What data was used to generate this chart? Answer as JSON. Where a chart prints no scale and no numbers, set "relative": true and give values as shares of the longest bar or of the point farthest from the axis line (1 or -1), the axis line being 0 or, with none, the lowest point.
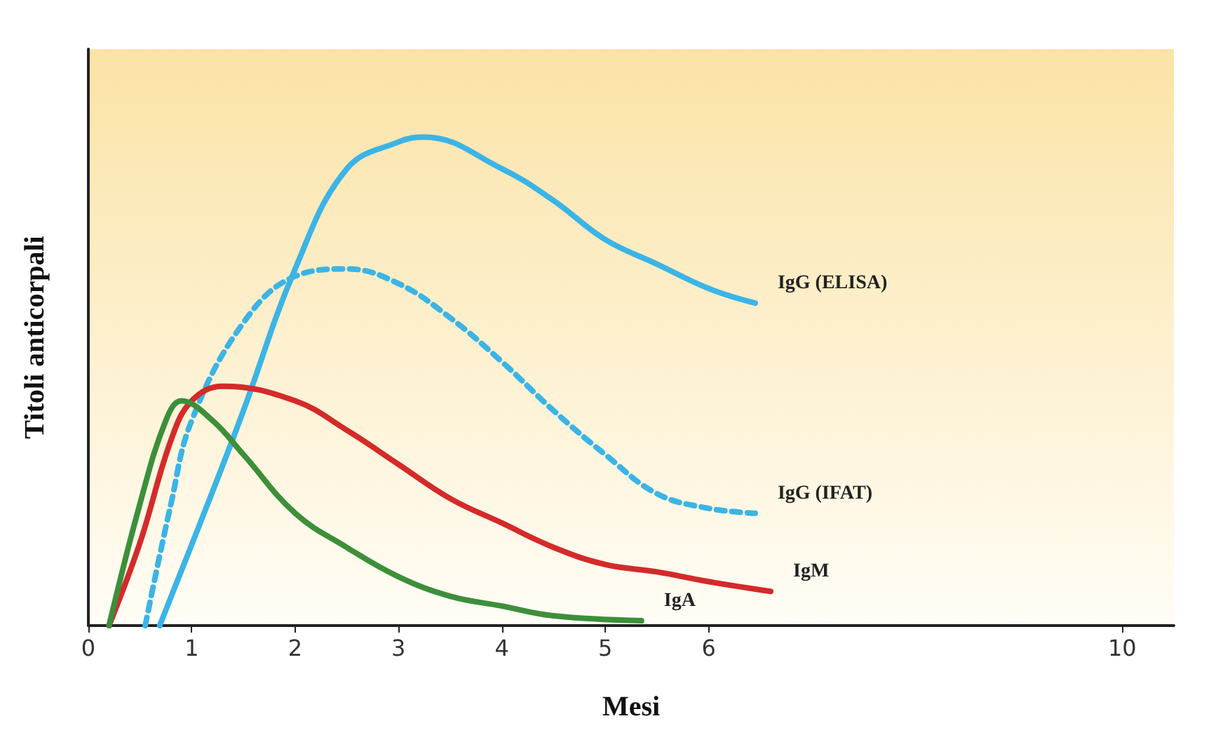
{
  "chart_data": {
    "type": "line",
    "relative": true,
    "xlabel": "Mesi",
    "ylabel": "Titoli anticorpali",
    "xlim": [
      0,
      10.5
    ],
    "xticks": [
      0,
      1,
      2,
      3,
      4,
      5,
      6,
      10
    ],
    "grid": false,
    "legend": false,
    "marker": "none",
    "series": [
      {
        "name": "IgG (ELISA)",
        "color": "#3bb4e6",
        "line_style": "solid",
        "x": [
          0.69,
          1.23,
          1.5,
          2,
          2.5,
          3,
          3.25,
          4,
          4.5,
          5,
          5.5,
          6,
          6.45
        ],
        "values": [
          0,
          0.29,
          0.44,
          0.73,
          0.935,
          0.99,
          1,
          0.935,
          0.87,
          0.79,
          0.74,
          0.69,
          0.66
        ]
      },
      {
        "name": "IgG (IFAT)",
        "color": "#3bb4e6",
        "line_style": "dashed",
        "x": [
          0.55,
          0.8,
          1,
          1.5,
          2,
          2.5,
          3,
          3.5,
          4,
          4.5,
          5,
          5.5,
          6,
          6.45
        ],
        "values": [
          0,
          0.25,
          0.42,
          0.62,
          0.715,
          0.73,
          0.7,
          0.63,
          0.54,
          0.44,
          0.35,
          0.27,
          0.24,
          0.23
        ]
      },
      {
        "name": "IgM",
        "color": "#d42a2a",
        "line_style": "solid",
        "x": [
          0.2,
          0.5,
          0.8,
          1,
          1.3,
          2,
          2.5,
          3,
          3.5,
          4,
          4.5,
          5,
          5.5,
          6,
          6.6
        ],
        "values": [
          0,
          0.17,
          0.38,
          0.46,
          0.49,
          0.46,
          0.4,
          0.33,
          0.26,
          0.21,
          0.16,
          0.125,
          0.11,
          0.09,
          0.07
        ]
      },
      {
        "name": "IgA",
        "color": "#3d8f3a",
        "line_style": "solid",
        "x": [
          0.2,
          0.5,
          0.75,
          0.9,
          1.2,
          1.5,
          2,
          2.5,
          3,
          3.5,
          4,
          4.5,
          5.35
        ],
        "values": [
          0,
          0.25,
          0.42,
          0.46,
          0.42,
          0.35,
          0.23,
          0.16,
          0.1,
          0.06,
          0.04,
          0.02,
          0.01
        ]
      }
    ]
  }
}
